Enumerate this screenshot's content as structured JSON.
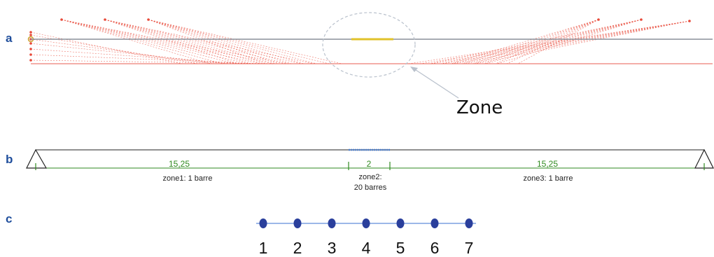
{
  "panels": {
    "a": {
      "label": "a",
      "callout": "Zone",
      "cable_color": "#e84a3a",
      "deck_color": "#8a8f99",
      "highlight_color": "#e0c22a"
    },
    "b": {
      "label": "b",
      "beam_color": "#222222",
      "span_color": "#2f8a1f",
      "midzone_color": "#4a7fd0",
      "span_left_value": "15,25",
      "span_mid_value": "2",
      "span_right_value": "15,25",
      "zone1_label": "zone1: 1 barre",
      "zone2_label_line1": "zone2:",
      "zone2_label_line2": "20 barres",
      "zone3_label": "zone3: 1 barre"
    },
    "c": {
      "label": "c",
      "line_color": "#3a6fd0",
      "node_color": "#2a3f9c",
      "nodes": [
        "1",
        "2",
        "3",
        "4",
        "5",
        "6",
        "7"
      ]
    }
  }
}
